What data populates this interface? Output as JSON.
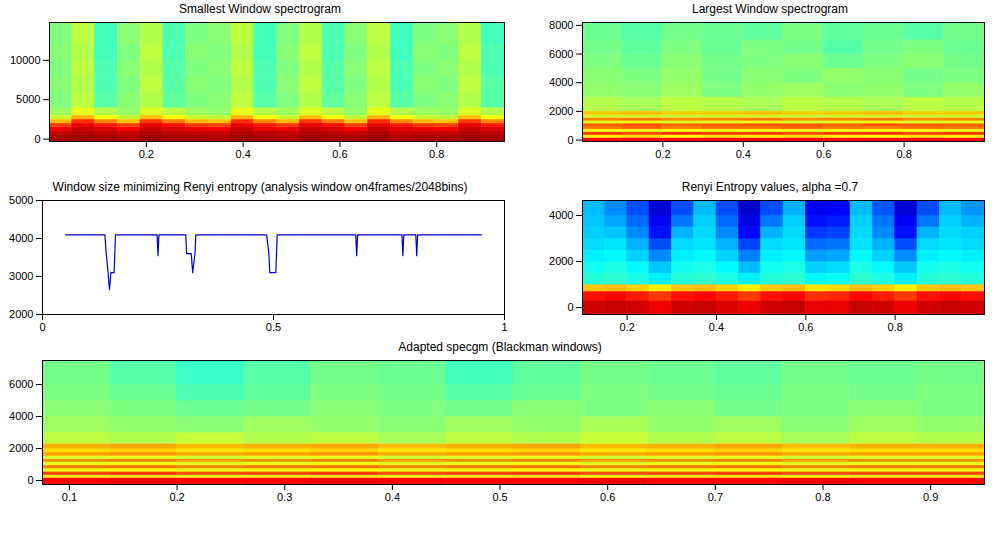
{
  "chart_data": [
    {
      "type": "heatmap",
      "title": "Smallest Window spectrogram",
      "xlim": [
        0,
        0.94
      ],
      "xticks": [
        0.2,
        0.4,
        0.6,
        0.8
      ],
      "ylim": [
        -300,
        14800
      ],
      "yticks": [
        0,
        5000,
        10000
      ],
      "zlim": [
        0,
        10
      ],
      "xbins": [
        0,
        0.047,
        0.094,
        0.141,
        0.188,
        0.235,
        0.282,
        0.329,
        0.376,
        0.423,
        0.47,
        0.517,
        0.564,
        0.611,
        0.658,
        0.705,
        0.752,
        0.799,
        0.846,
        0.893,
        0.94
      ],
      "ybins": [
        -300,
        500,
        1000,
        1500,
        2000,
        2500,
        3000,
        4000,
        6000,
        8000,
        10000,
        12000,
        14800
      ],
      "cells": [
        [
          9.6,
          9.7,
          9.6,
          9.5,
          9.7,
          9.6,
          9.6,
          9.5,
          9.7,
          9.6,
          9.5,
          9.7,
          9.6,
          9.6,
          9.7,
          9.5,
          9.6,
          9.6,
          9.7,
          9.6
        ],
        [
          9.3,
          9.5,
          9.4,
          9.3,
          9.5,
          9.4,
          9.3,
          9.3,
          9.5,
          9.4,
          9.3,
          9.5,
          9.4,
          9.3,
          9.5,
          9.3,
          9.3,
          9.3,
          9.5,
          9.4
        ],
        [
          8.9,
          9.3,
          9.1,
          8.8,
          9.3,
          9.1,
          8.9,
          8.8,
          9.3,
          9.0,
          8.9,
          9.3,
          9.1,
          8.8,
          9.3,
          9.0,
          8.9,
          8.8,
          9.3,
          9.1
        ],
        [
          8.2,
          9.0,
          8.5,
          8.1,
          9.0,
          8.6,
          8.2,
          8.1,
          9.0,
          8.5,
          8.2,
          9.0,
          8.6,
          8.1,
          9.0,
          8.5,
          8.2,
          8.1,
          9.0,
          8.5
        ],
        [
          6.9,
          8.3,
          7.4,
          6.8,
          8.2,
          7.5,
          6.9,
          6.8,
          8.3,
          7.4,
          6.9,
          8.2,
          7.5,
          6.8,
          8.3,
          7.4,
          6.9,
          6.8,
          8.2,
          7.4
        ],
        [
          5.8,
          7.0,
          6.2,
          5.7,
          6.9,
          6.3,
          5.8,
          5.7,
          7.0,
          6.2,
          5.8,
          6.9,
          6.3,
          5.7,
          7.0,
          6.2,
          5.8,
          5.7,
          6.9,
          6.2
        ],
        [
          5.3,
          6.0,
          5.5,
          5.2,
          5.9,
          5.6,
          5.3,
          5.2,
          6.0,
          5.5,
          5.3,
          5.9,
          5.6,
          5.2,
          6.0,
          5.5,
          5.3,
          5.2,
          5.9,
          5.5
        ],
        [
          5.0,
          5.6,
          4.6,
          5.1,
          5.5,
          4.7,
          5.0,
          5.1,
          5.6,
          4.6,
          5.0,
          5.5,
          4.7,
          5.1,
          5.6,
          4.6,
          5.0,
          5.1,
          5.5,
          4.6
        ],
        [
          5.1,
          5.5,
          4.5,
          5.0,
          5.6,
          4.6,
          5.1,
          5.0,
          5.5,
          4.5,
          5.1,
          5.6,
          4.6,
          5.0,
          5.5,
          4.5,
          5.1,
          5.0,
          5.6,
          4.6
        ],
        [
          5.0,
          5.6,
          4.5,
          5.1,
          5.5,
          4.6,
          5.0,
          5.1,
          5.6,
          4.5,
          5.0,
          5.5,
          4.6,
          5.1,
          5.6,
          4.5,
          5.0,
          5.1,
          5.5,
          4.5
        ],
        [
          5.1,
          5.5,
          4.4,
          5.0,
          5.6,
          4.5,
          5.1,
          5.0,
          5.5,
          4.4,
          5.1,
          5.6,
          4.5,
          5.0,
          5.5,
          4.4,
          5.1,
          5.0,
          5.6,
          4.5
        ],
        [
          5.0,
          5.6,
          4.4,
          5.1,
          5.5,
          4.5,
          5.0,
          5.1,
          5.6,
          4.4,
          5.0,
          5.5,
          4.5,
          5.1,
          5.6,
          4.4,
          5.0,
          5.1,
          5.5,
          4.4
        ]
      ]
    },
    {
      "type": "heatmap",
      "title": "Largest Window spectrogram",
      "xlim": [
        0,
        1
      ],
      "xticks": [
        0.2,
        0.4,
        0.6,
        0.8
      ],
      "ylim": [
        -100,
        8200
      ],
      "yticks": [
        0,
        2000,
        4000,
        6000,
        8000
      ],
      "zlim": [
        0,
        10
      ],
      "xbins": [
        0,
        0.1,
        0.2,
        0.3,
        0.4,
        0.5,
        0.6,
        0.7,
        0.8,
        0.9,
        1
      ],
      "ybins": [
        -100,
        150,
        350,
        550,
        750,
        950,
        1150,
        1350,
        1550,
        1750,
        2000,
        3000,
        4000,
        5000,
        6000,
        7000,
        8200
      ],
      "cells": [
        [
          8.8,
          8.9,
          8.7,
          8.8,
          8.9,
          8.8,
          8.7,
          8.8,
          8.9,
          8.8
        ],
        [
          6.4,
          6.6,
          6.3,
          6.5,
          6.4,
          6.6,
          6.4,
          6.3,
          6.5,
          6.4
        ],
        [
          8.2,
          8.0,
          8.3,
          8.1,
          8.2,
          8.0,
          8.2,
          8.3,
          8.1,
          8.2
        ],
        [
          6.2,
          6.0,
          6.3,
          6.1,
          6.2,
          6.0,
          6.1,
          6.3,
          6.2,
          6.0
        ],
        [
          7.6,
          7.8,
          7.5,
          7.7,
          7.6,
          7.8,
          7.6,
          7.5,
          7.7,
          7.6
        ],
        [
          7.9,
          8.0,
          7.8,
          7.9,
          8.0,
          7.9,
          7.8,
          8.0,
          7.9,
          7.8
        ],
        [
          6.0,
          6.1,
          5.9,
          6.0,
          6.1,
          5.9,
          6.0,
          6.1,
          5.9,
          6.0
        ],
        [
          7.5,
          7.6,
          7.4,
          7.5,
          7.6,
          7.4,
          7.5,
          7.6,
          7.4,
          7.5
        ],
        [
          5.8,
          5.9,
          5.7,
          5.8,
          5.9,
          5.7,
          5.8,
          5.9,
          5.7,
          5.8
        ],
        [
          6.8,
          6.9,
          6.7,
          6.8,
          6.9,
          6.7,
          6.8,
          6.9,
          6.7,
          6.8
        ],
        [
          5.5,
          5.4,
          5.6,
          5.5,
          5.4,
          5.6,
          5.5,
          5.4,
          5.6,
          5.5
        ],
        [
          5.2,
          5.1,
          5.3,
          5.0,
          5.2,
          5.3,
          5.1,
          5.2,
          5.0,
          5.2
        ],
        [
          5.1,
          5.0,
          5.2,
          4.9,
          5.1,
          5.0,
          5.2,
          5.1,
          4.9,
          5.0
        ],
        [
          5.0,
          4.8,
          5.1,
          4.9,
          5.0,
          5.1,
          4.8,
          5.0,
          5.1,
          4.9
        ],
        [
          4.9,
          4.7,
          5.0,
          4.8,
          5.0,
          4.9,
          4.6,
          4.9,
          5.0,
          4.8
        ],
        [
          4.8,
          4.6,
          4.9,
          4.8,
          4.7,
          5.0,
          4.7,
          4.8,
          4.6,
          4.9
        ]
      ]
    },
    {
      "type": "line",
      "title": "Window size minimizing Renyi entropy (analysis window on4frames/2048bins)",
      "xlim": [
        0,
        1
      ],
      "xticks": [
        0,
        0.5,
        1
      ],
      "ylim": [
        2000,
        5000
      ],
      "yticks": [
        2000,
        3000,
        4000,
        5000
      ],
      "color": "#0000cc",
      "x": [
        0.05,
        0.135,
        0.138,
        0.142,
        0.145,
        0.148,
        0.155,
        0.158,
        0.248,
        0.25,
        0.252,
        0.31,
        0.312,
        0.322,
        0.325,
        0.33,
        0.332,
        0.485,
        0.49,
        0.492,
        0.505,
        0.508,
        0.678,
        0.68,
        0.682,
        0.778,
        0.78,
        0.782,
        0.808,
        0.81,
        0.812,
        0.95
      ],
      "values": [
        4096,
        4096,
        3600,
        3100,
        2650,
        3100,
        3100,
        4096,
        4096,
        3550,
        4096,
        4096,
        3600,
        3600,
        3100,
        3600,
        4096,
        4096,
        3600,
        3100,
        3100,
        4096,
        4096,
        3550,
        4096,
        4096,
        3550,
        4096,
        4096,
        3550,
        4096,
        4096
      ]
    },
    {
      "type": "heatmap",
      "title": "Renyi Entropy values, alpha =0.7",
      "xlim": [
        0.1,
        1
      ],
      "xticks": [
        0.2,
        0.4,
        0.6,
        0.8
      ],
      "ylim": [
        -300,
        4650
      ],
      "yticks": [
        0,
        2000,
        4000
      ],
      "zlim": [
        0,
        10
      ],
      "xbins": [
        0.1,
        0.15,
        0.2,
        0.25,
        0.3,
        0.35,
        0.4,
        0.45,
        0.5,
        0.55,
        0.6,
        0.65,
        0.7,
        0.75,
        0.8,
        0.85,
        0.9,
        0.95,
        1
      ],
      "ybins": [
        -300,
        300,
        700,
        1000,
        1500,
        2000,
        2500,
        3000,
        3500,
        4000,
        4650
      ],
      "cells": [
        [
          9.2,
          9.3,
          9.2,
          8.9,
          9.2,
          9.3,
          9.1,
          8.9,
          9.2,
          9.3,
          9.0,
          9.0,
          9.3,
          9.2,
          8.9,
          9.2,
          9.3,
          9.2
        ],
        [
          8.6,
          8.7,
          8.5,
          8.2,
          8.6,
          8.7,
          8.5,
          8.2,
          8.6,
          8.7,
          8.3,
          8.4,
          8.7,
          8.5,
          8.2,
          8.6,
          8.7,
          8.6
        ],
        [
          6.8,
          6.9,
          6.7,
          6.4,
          6.8,
          6.9,
          6.7,
          6.4,
          6.8,
          6.9,
          6.5,
          6.6,
          6.9,
          6.7,
          6.4,
          6.8,
          6.9,
          6.8
        ],
        [
          4.1,
          4.2,
          4.0,
          3.6,
          4.1,
          4.2,
          4.0,
          3.6,
          4.1,
          4.2,
          3.7,
          3.8,
          4.2,
          4.0,
          3.6,
          4.1,
          4.2,
          4.1
        ],
        [
          3.9,
          4.0,
          3.7,
          3.2,
          3.9,
          4.0,
          3.7,
          3.1,
          3.9,
          4.0,
          3.3,
          3.4,
          4.0,
          3.7,
          3.2,
          3.9,
          4.0,
          3.9
        ],
        [
          3.6,
          3.7,
          3.3,
          2.6,
          3.6,
          3.7,
          3.3,
          2.5,
          3.6,
          3.7,
          2.8,
          2.9,
          3.7,
          3.3,
          2.6,
          3.6,
          3.7,
          3.6
        ],
        [
          3.4,
          3.5,
          3.0,
          2.0,
          3.4,
          3.5,
          3.0,
          1.9,
          3.4,
          3.5,
          2.3,
          2.4,
          3.5,
          3.0,
          2.0,
          3.4,
          3.5,
          3.4
        ],
        [
          3.3,
          3.2,
          2.6,
          1.4,
          3.0,
          3.4,
          2.6,
          1.3,
          3.0,
          3.4,
          1.8,
          1.9,
          3.4,
          2.6,
          1.4,
          3.0,
          3.4,
          3.3
        ],
        [
          3.2,
          2.9,
          2.3,
          1.1,
          2.4,
          3.3,
          2.3,
          1.0,
          2.4,
          3.3,
          1.4,
          1.5,
          3.3,
          2.4,
          1.1,
          2.4,
          3.3,
          3.0
        ],
        [
          3.1,
          2.6,
          2.0,
          0.8,
          2.0,
          3.1,
          2.0,
          0.7,
          2.0,
          3.0,
          1.1,
          1.2,
          3.1,
          2.1,
          0.8,
          2.0,
          3.1,
          2.7
        ]
      ]
    },
    {
      "type": "heatmap",
      "title": "Adapted specgm (Blackman windows)",
      "xlim": [
        0.075,
        0.95
      ],
      "xticks": [
        0.1,
        0.2,
        0.3,
        0.4,
        0.5,
        0.6,
        0.7,
        0.8,
        0.9
      ],
      "ylim": [
        -250,
        7500
      ],
      "yticks": [
        0,
        2000,
        4000,
        6000
      ],
      "zlim": [
        0,
        10
      ],
      "xbins": [
        0.075,
        0.1375,
        0.2,
        0.2625,
        0.325,
        0.3875,
        0.45,
        0.5125,
        0.575,
        0.6375,
        0.7,
        0.7625,
        0.825,
        0.8875,
        0.95
      ],
      "ybins": [
        -250,
        150,
        350,
        550,
        750,
        950,
        1150,
        1350,
        1550,
        1750,
        2000,
        2300,
        3000,
        4000,
        5000,
        6000,
        7500
      ],
      "cells": [
        [
          8.8,
          8.9,
          8.7,
          8.8,
          8.9,
          8.8,
          8.7,
          8.8,
          8.9,
          8.8,
          8.7,
          8.9,
          8.8,
          8.8
        ],
        [
          6.5,
          6.6,
          6.4,
          6.5,
          6.6,
          6.4,
          6.5,
          6.6,
          6.4,
          6.5,
          6.6,
          6.4,
          6.5,
          6.5
        ],
        [
          8.1,
          8.2,
          8.0,
          8.1,
          8.2,
          8.0,
          8.1,
          8.2,
          8.0,
          8.1,
          8.2,
          8.0,
          8.1,
          8.1
        ],
        [
          6.1,
          6.2,
          6.0,
          6.1,
          6.2,
          6.0,
          6.1,
          6.2,
          6.0,
          6.1,
          6.2,
          6.0,
          6.1,
          6.1
        ],
        [
          7.5,
          7.6,
          7.4,
          7.5,
          7.6,
          7.4,
          7.5,
          7.6,
          7.4,
          7.5,
          7.6,
          7.4,
          7.5,
          7.5
        ],
        [
          6.0,
          6.1,
          5.9,
          6.0,
          6.1,
          5.9,
          6.0,
          6.1,
          5.9,
          6.0,
          6.1,
          5.9,
          6.0,
          6.0
        ],
        [
          7.3,
          7.4,
          7.2,
          7.3,
          7.4,
          7.2,
          7.3,
          7.4,
          7.2,
          7.3,
          7.4,
          7.2,
          7.3,
          7.3
        ],
        [
          5.9,
          6.0,
          5.8,
          5.9,
          6.0,
          5.8,
          5.9,
          6.0,
          5.8,
          5.9,
          6.0,
          5.8,
          5.9,
          5.9
        ],
        [
          7.2,
          7.3,
          7.1,
          7.2,
          7.3,
          7.1,
          7.2,
          7.3,
          7.1,
          7.2,
          7.3,
          7.1,
          7.2,
          7.2
        ],
        [
          6.6,
          6.7,
          6.5,
          6.6,
          6.7,
          6.5,
          6.6,
          6.7,
          6.5,
          6.6,
          6.7,
          6.5,
          6.6,
          6.6
        ],
        [
          7.0,
          7.1,
          6.9,
          7.0,
          7.1,
          6.9,
          7.0,
          7.1,
          6.9,
          7.0,
          7.1,
          6.9,
          7.0,
          7.0
        ],
        [
          5.6,
          5.5,
          5.7,
          5.5,
          5.6,
          5.4,
          5.6,
          5.5,
          5.7,
          5.5,
          5.6,
          5.4,
          5.6,
          5.5
        ],
        [
          5.3,
          5.2,
          5.1,
          5.3,
          5.2,
          5.1,
          5.3,
          5.2,
          5.4,
          5.2,
          5.3,
          5.1,
          5.3,
          5.2
        ],
        [
          5.1,
          5.0,
          4.8,
          4.9,
          5.1,
          5.0,
          4.9,
          5.1,
          5.0,
          5.1,
          4.9,
          5.0,
          5.1,
          5.0
        ],
        [
          5.0,
          4.8,
          4.5,
          4.7,
          5.0,
          4.9,
          4.6,
          4.8,
          5.0,
          4.9,
          4.8,
          5.0,
          4.9,
          5.0
        ],
        [
          4.9,
          4.6,
          4.3,
          4.6,
          4.9,
          4.8,
          4.4,
          4.7,
          4.9,
          4.8,
          4.7,
          4.9,
          4.8,
          4.9
        ]
      ]
    }
  ]
}
